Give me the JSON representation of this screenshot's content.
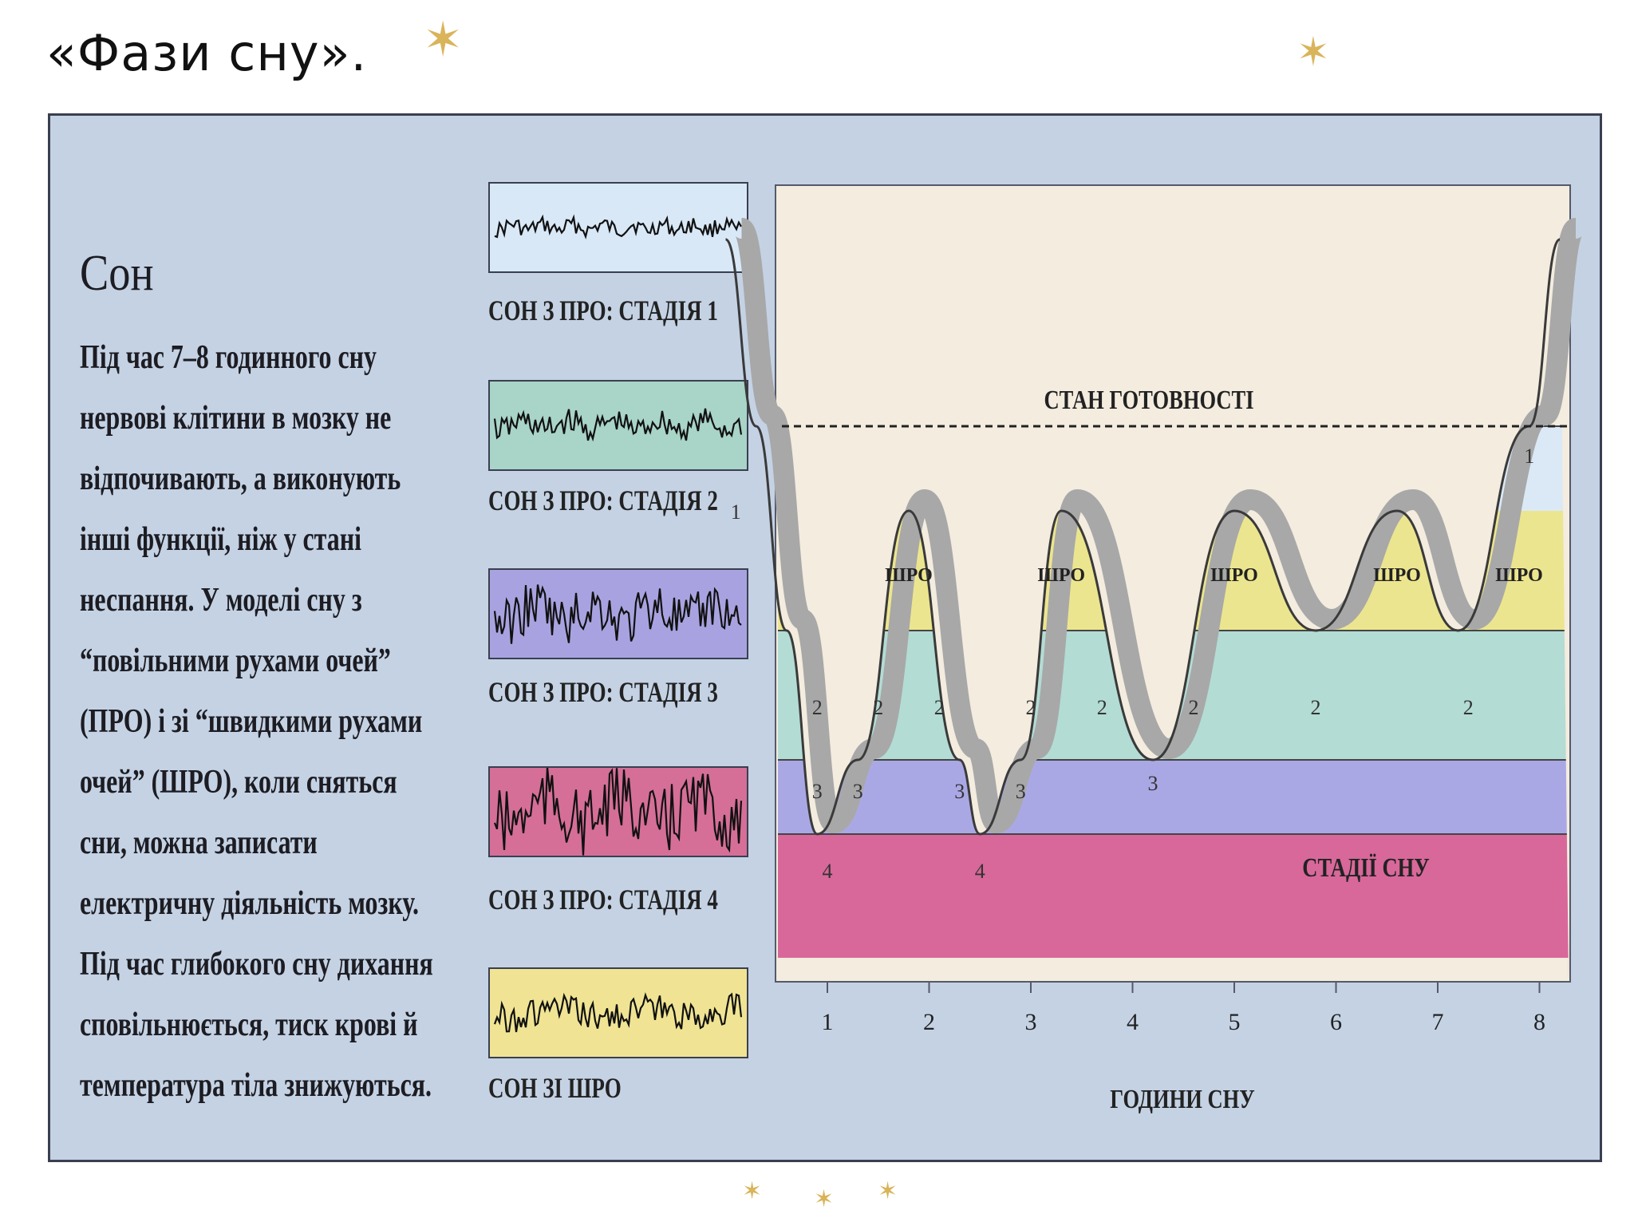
{
  "slide": {
    "title": "«Фази сну»."
  },
  "body": {
    "heading": "Сон",
    "lines": [
      "Під час 7–8 годинного сну",
      "нервові клітини в мозку не",
      "відпочивають, а виконують",
      "інші функції, ніж у стані",
      "неспання. У моделі сну з",
      "“повільними рухами очей”",
      "(ПРО) і зі “швидкими рухами",
      "очей” (ШРО), коли сняться",
      "сни, можна записати",
      "електричну діяльність мозку.",
      "Під час глибокого сну дихання",
      "сповільнюється, тиск крові й",
      "температура тіла знижуються."
    ]
  },
  "eeg": [
    {
      "label": "СОН З ПРО: СТАДІЯ 1",
      "color": "#d8e8f7"
    },
    {
      "label": "СОН З ПРО: СТАДІЯ 2",
      "color": "#a9d4c8"
    },
    {
      "label": "СОН З ПРО: СТАДІЯ 3",
      "color": "#a8a3e0"
    },
    {
      "label": "СОН З ПРО: СТАДІЯ 4",
      "color": "#d56f98"
    },
    {
      "label": "СОН ЗІ ШРО",
      "color": "#f0e494"
    }
  ],
  "chart": {
    "wake_label": "СТАН ГОТОВНОСТІ",
    "stages_label": "СТАДІЇ СНУ",
    "x_axis_label": "ГОДИНИ СНУ",
    "x_ticks": [
      "1",
      "2",
      "3",
      "4",
      "5",
      "6",
      "7",
      "8"
    ],
    "rem_label": "ШРО",
    "stage_colors": {
      "stage1": "#dbe9f7",
      "rem": "#ece58f",
      "stage2": "#b3dcd4",
      "stage3": "#aaa8e4",
      "stage4": "#d8689a",
      "background": "#f3ecdf",
      "shadow": "#a8a8a8"
    }
  },
  "chart_data": {
    "type": "line",
    "xlabel": "ГОДИНИ СНУ",
    "ylabel": "СТАДІЇ СНУ",
    "x_ticks": [
      1,
      2,
      3,
      4,
      5,
      6,
      7,
      8
    ],
    "stage_levels": [
      "СТАН ГОТОВНОСТІ",
      "ШРО",
      "1",
      "2",
      "3",
      "4"
    ],
    "series": [
      {
        "points": [
          {
            "x": 0.0,
            "stage": "СТАН ГОТОВНОСТІ"
          },
          {
            "x": 0.3,
            "stage": "1"
          },
          {
            "x": 0.6,
            "stage": "2"
          },
          {
            "x": 0.9,
            "stage": "4"
          },
          {
            "x": 1.3,
            "stage": "3"
          },
          {
            "x": 1.8,
            "stage": "ШРО"
          },
          {
            "x": 2.3,
            "stage": "3"
          },
          {
            "x": 2.5,
            "stage": "4"
          },
          {
            "x": 2.9,
            "stage": "3"
          },
          {
            "x": 3.3,
            "stage": "ШРО"
          },
          {
            "x": 4.2,
            "stage": "3"
          },
          {
            "x": 5.0,
            "stage": "ШРО"
          },
          {
            "x": 5.8,
            "stage": "2"
          },
          {
            "x": 6.6,
            "stage": "ШРО"
          },
          {
            "x": 7.2,
            "stage": "2"
          },
          {
            "x": 7.9,
            "stage": "1"
          },
          {
            "x": 8.2,
            "stage": "СТАН ГОТОВНОСТІ"
          }
        ]
      }
    ]
  }
}
